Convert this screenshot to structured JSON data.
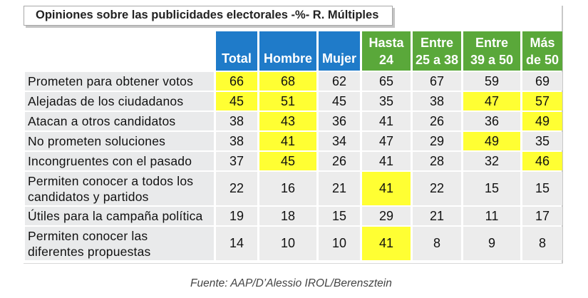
{
  "title": "Opiniones sobre las publicidades electorales -%- R. Múltiples",
  "source": "Fuente: AAP/D’Alessio IROL/Berensztein",
  "colors": {
    "blue_header": "#1f7bc9",
    "green_header": "#5aa83a",
    "highlight": "#ffff33",
    "cell_bg": "#ececec"
  },
  "chart_data": {
    "type": "table",
    "title": "Opiniones sobre las publicidades electorales -%- R. Múltiples",
    "columns": [
      "Total",
      "Hombre",
      "Mujer",
      "Hasta 24",
      "Entre 25 a 38",
      "Entre 39 a 50",
      "Más de 50"
    ],
    "header_lines": [
      [
        "Total"
      ],
      [
        "Hombre"
      ],
      [
        "Mujer"
      ],
      [
        "Hasta",
        "24"
      ],
      [
        "Entre",
        "25 a 38"
      ],
      [
        "Entre",
        "39 a 50"
      ],
      [
        "Más",
        "de 50"
      ]
    ],
    "rows": [
      {
        "label": "Prometen para obtener votos",
        "values": [
          66,
          68,
          62,
          65,
          67,
          59,
          69
        ],
        "highlight": [
          true,
          true,
          false,
          false,
          false,
          false,
          false
        ]
      },
      {
        "label": "Alejadas de los ciudadanos",
        "values": [
          45,
          51,
          45,
          35,
          38,
          47,
          57
        ],
        "highlight": [
          true,
          true,
          false,
          false,
          false,
          true,
          true
        ]
      },
      {
        "label": "Atacan a otros candidatos",
        "values": [
          38,
          43,
          36,
          41,
          26,
          36,
          49
        ],
        "highlight": [
          false,
          true,
          false,
          false,
          false,
          false,
          true
        ]
      },
      {
        "label": "No prometen soluciones",
        "values": [
          38,
          41,
          34,
          47,
          29,
          49,
          35
        ],
        "highlight": [
          false,
          true,
          false,
          false,
          false,
          true,
          false
        ]
      },
      {
        "label": "Incongruentes con el pasado",
        "values": [
          37,
          45,
          26,
          41,
          28,
          32,
          46
        ],
        "highlight": [
          false,
          true,
          false,
          false,
          false,
          false,
          true
        ]
      },
      {
        "label": "Permiten conocer a todos los candidatos y partidos",
        "label_lines": [
          "Permiten conocer a todos los",
          "candidatos y partidos"
        ],
        "values": [
          22,
          16,
          21,
          41,
          22,
          15,
          15
        ],
        "highlight": [
          false,
          false,
          false,
          true,
          false,
          false,
          false
        ]
      },
      {
        "label": "Útiles para la campaña política",
        "values": [
          19,
          18,
          15,
          29,
          21,
          11,
          17
        ],
        "highlight": [
          false,
          false,
          false,
          false,
          false,
          false,
          false
        ]
      },
      {
        "label": "Permiten conocer las diferentes propuestas",
        "label_lines": [
          "Permiten conocer las",
          "diferentes propuestas"
        ],
        "values": [
          14,
          10,
          10,
          41,
          8,
          9,
          8
        ],
        "highlight": [
          false,
          false,
          false,
          true,
          false,
          false,
          false
        ]
      }
    ]
  }
}
